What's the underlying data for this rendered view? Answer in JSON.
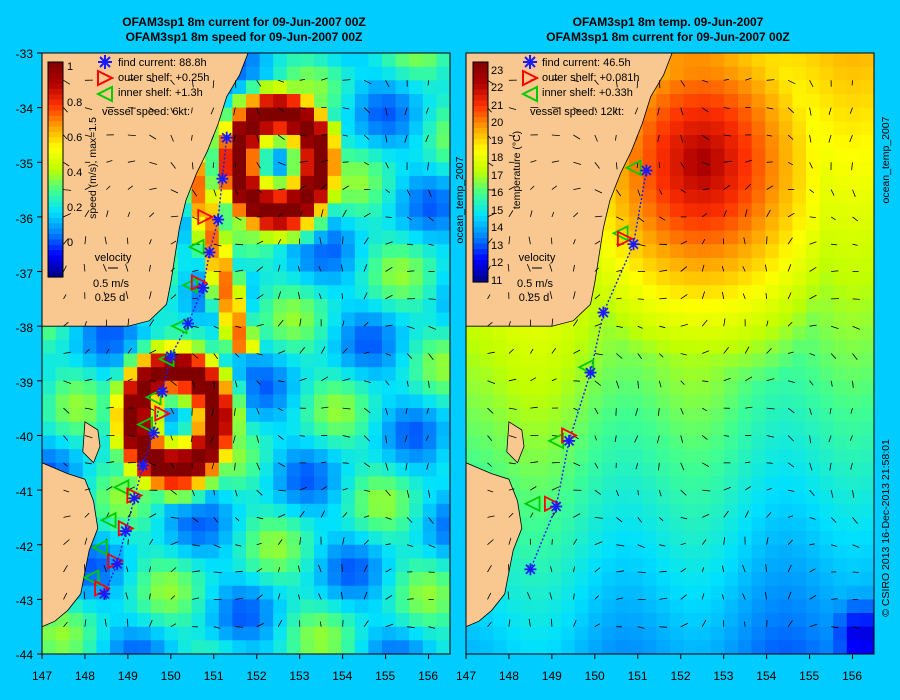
{
  "colors": {
    "background": "#00ccff",
    "land": "#f9c890",
    "ocean_base": "#4aa6ee",
    "track_current": "#1a1aff",
    "track_outer_shelf": "#ff0000",
    "track_inner_shelf": "#00cc00"
  },
  "side_text": {
    "right_panel_tag": "ocean_temp_2007",
    "credit": "© CSIRO 2013   16-Dec-2013 21:58:01"
  },
  "chart_data": [
    {
      "type": "heatmap",
      "title": [
        "OFAM3sp1 8m current for 09-Jun-2007 00Z",
        "OFAM3sp1 8m speed for 09-Jun-2007 00Z"
      ],
      "xlim": [
        147,
        156.5
      ],
      "ylim": [
        -44,
        -33
      ],
      "xticks": [
        "147",
        "148",
        "149",
        "150",
        "151",
        "152",
        "153",
        "154",
        "155",
        "156"
      ],
      "yticks": [
        "-33",
        "-34",
        "-35",
        "-36",
        "-37",
        "-38",
        "-39",
        "-40",
        "-41",
        "-42",
        "-43",
        "-44"
      ],
      "colorbar": {
        "label": "speed (m/s), max=1.5",
        "ticks": [
          "1",
          "0.8",
          "0.6",
          "0.4",
          "0.2",
          "0"
        ],
        "tick_values": [
          1,
          0.8,
          0.6,
          0.4,
          0.2,
          0
        ],
        "range": [
          -0.2,
          1.0
        ],
        "colors": [
          "#000080",
          "#0000ff",
          "#0080ff",
          "#00e0ff",
          "#40ff90",
          "#c0ff00",
          "#ffff00",
          "#ffa000",
          "#ff3000",
          "#b00000",
          "#800000"
        ]
      },
      "legend": {
        "position": "top-left",
        "items": [
          {
            "marker": "asterisk",
            "color": "#1a1aff",
            "label": "find current: 88.8h"
          },
          {
            "marker": "triangle-right",
            "color": "#ff0000",
            "label": "outer shelf: +0.25h"
          },
          {
            "marker": "triangle-left",
            "color": "#00cc00",
            "label": "inner shelf: +1.3h"
          }
        ],
        "vessel_speed": "vessel speed: 6kt:"
      },
      "velocity_key": {
        "title": "velocity",
        "speed": "0.5 m/s",
        "duration": "0.25 d"
      },
      "features": [
        {
          "kind": "eddy",
          "lon": 152.5,
          "lat": -35.0,
          "value": 1.0
        },
        {
          "kind": "eddy",
          "lon": 150.1,
          "lat": -39.7,
          "value": 1.0
        },
        {
          "kind": "current-jet",
          "lon": 151.0,
          "lat": -36.5,
          "value": 0.7
        }
      ],
      "route": {
        "current_markers": [
          [
            151.3,
            -34.55
          ],
          [
            151.2,
            -35.3
          ],
          [
            151.1,
            -36.05
          ],
          [
            150.9,
            -36.65
          ],
          [
            150.75,
            -37.3
          ],
          [
            150.4,
            -37.95
          ],
          [
            150.0,
            -38.55
          ],
          [
            149.8,
            -39.2
          ],
          [
            149.6,
            -39.95
          ],
          [
            149.35,
            -40.55
          ],
          [
            149.15,
            -41.15
          ],
          [
            148.95,
            -41.75
          ],
          [
            148.75,
            -42.35
          ],
          [
            148.45,
            -42.9
          ]
        ],
        "outer_shelf_markers": [
          [
            150.8,
            -36.0
          ],
          [
            150.65,
            -37.2
          ],
          [
            149.8,
            -39.6
          ],
          [
            149.15,
            -41.1
          ],
          [
            148.95,
            -41.7
          ],
          [
            148.7,
            -42.3
          ],
          [
            148.4,
            -42.8
          ]
        ],
        "inner_shelf_markers": [
          [
            150.6,
            -36.55
          ],
          [
            150.45,
            -37.25
          ],
          [
            150.2,
            -38.0
          ],
          [
            149.9,
            -38.6
          ],
          [
            149.6,
            -39.3
          ],
          [
            149.4,
            -39.8
          ],
          [
            148.85,
            -40.95
          ],
          [
            148.55,
            -41.55
          ],
          [
            148.35,
            -42.05
          ],
          [
            148.15,
            -42.6
          ]
        ]
      }
    },
    {
      "type": "heatmap",
      "title": [
        "OFAM3sp1 8m temp. 09-Jun-2007",
        "OFAM3sp1 8m current for 09-Jun-2007 00Z"
      ],
      "xlim": [
        147,
        156.5
      ],
      "ylim": [
        -44,
        -33
      ],
      "xticks": [
        "147",
        "148",
        "149",
        "150",
        "151",
        "152",
        "153",
        "154",
        "155",
        "156"
      ],
      "yticks": [],
      "colorbar": {
        "label": "temperature (°C)",
        "ticks": [
          "23",
          "22",
          "21",
          "20",
          "19",
          "18",
          "17",
          "16",
          "15",
          "14",
          "13",
          "12",
          "11"
        ],
        "tick_values": [
          23,
          22,
          21,
          20,
          19,
          18,
          17,
          16,
          15,
          14,
          13,
          12,
          11
        ],
        "range": [
          10.5,
          23.5
        ],
        "colors": [
          "#000080",
          "#0000ff",
          "#0080ff",
          "#00e0ff",
          "#40ff90",
          "#c0ff00",
          "#ffff00",
          "#ffa000",
          "#ff3000",
          "#b00000",
          "#800000"
        ]
      },
      "legend": {
        "position": "top-left",
        "items": [
          {
            "marker": "asterisk",
            "color": "#1a1aff",
            "label": "find current: 46.5h"
          },
          {
            "marker": "triangle-right",
            "color": "#ff0000",
            "label": "outer shelf: +0.081h"
          },
          {
            "marker": "triangle-left",
            "color": "#00cc00",
            "label": "inner shelf: +0.33h"
          }
        ],
        "vessel_speed": "vessel speed: 12kt:"
      },
      "velocity_key": {
        "title": "velocity",
        "speed": "0.5 m/s",
        "duration": "0.25 d"
      },
      "features": [
        {
          "kind": "warm-eddy",
          "lon": 152.5,
          "lat": -35.0,
          "value": 22.5
        },
        {
          "kind": "cool-core",
          "lon": 150.0,
          "lat": -39.7,
          "value": 18.5
        },
        {
          "kind": "cold-pool",
          "lon": 156.2,
          "lat": -43.7,
          "value": 11.0
        }
      ],
      "route": {
        "current_markers": [
          [
            151.2,
            -35.15
          ],
          [
            150.9,
            -36.5
          ],
          [
            150.2,
            -37.75
          ],
          [
            149.9,
            -38.85
          ],
          [
            149.4,
            -40.1
          ],
          [
            149.1,
            -41.3
          ],
          [
            148.5,
            -42.45
          ]
        ],
        "outer_shelf_markers": [
          [
            150.7,
            -36.4
          ],
          [
            149.4,
            -40.0
          ],
          [
            149.0,
            -41.25
          ]
        ],
        "inner_shelf_markers": [
          [
            150.9,
            -35.1
          ],
          [
            150.6,
            -36.3
          ],
          [
            149.8,
            -38.75
          ],
          [
            149.1,
            -40.1
          ],
          [
            148.55,
            -41.25
          ]
        ]
      }
    }
  ]
}
